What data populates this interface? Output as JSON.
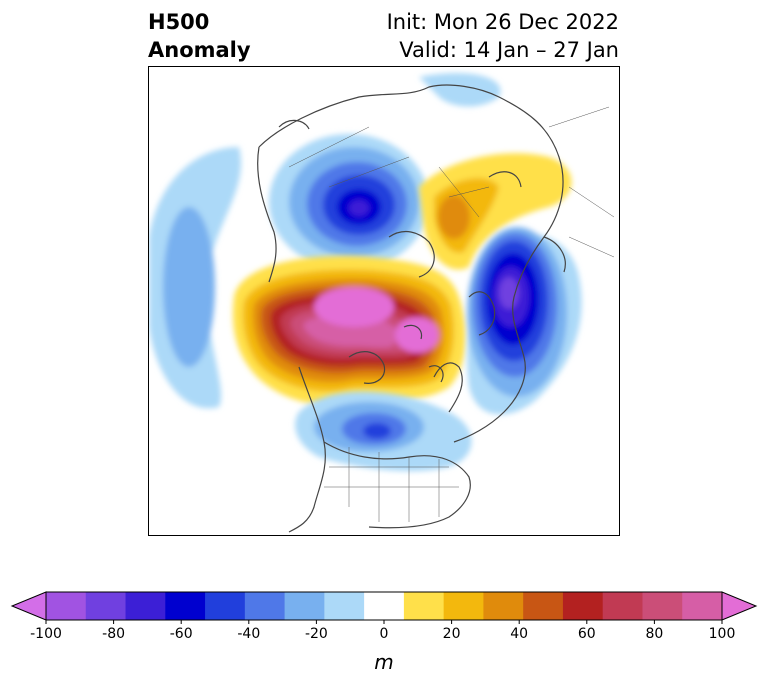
{
  "title": {
    "left_line1": "H500",
    "left_line2": "Anomaly",
    "right_line1": "Init: Mon 26 Dec 2022",
    "right_line2": "Valid: 14 Jan – 27 Jan"
  },
  "colorbar": {
    "unit": "m",
    "extend": "both",
    "tick_labels": [
      "-100",
      "-80",
      "-60",
      "-40",
      "-20",
      "0",
      "20",
      "40",
      "60",
      "80",
      "100"
    ],
    "levels": [
      -100,
      -90,
      -80,
      -70,
      -60,
      -50,
      -40,
      -30,
      -20,
      -10,
      10,
      20,
      30,
      40,
      50,
      60,
      70,
      80,
      90,
      100
    ],
    "colors": [
      "#d36ee8",
      "#a153e2",
      "#7040e0",
      "#3c1fd6",
      "#0000cf",
      "#213fdc",
      "#4f78e8",
      "#78b0ef",
      "#acd9f8",
      "#ffffff",
      "#ffe04a",
      "#f3b80d",
      "#e08b0c",
      "#c85614",
      "#b32120",
      "#c13a53",
      "#cb4e78",
      "#d65ea6",
      "#e36dd6"
    ]
  },
  "map": {
    "projection": "north-polar-stereographic",
    "field": "500 hPa geopotential height anomaly",
    "centers": [
      {
        "label": "positive-anomaly-arctic",
        "peak_m": 100
      },
      {
        "label": "negative-anomaly-siberia",
        "peak_m": -90
      },
      {
        "label": "negative-anomaly-north-pacific",
        "peak_m": -90
      },
      {
        "label": "positive-anomaly-europe",
        "peak_m": 50
      },
      {
        "label": "negative-anomaly-north-america",
        "peak_m": -60
      },
      {
        "label": "negative-anomaly-north-atlantic",
        "peak_m": -40
      }
    ]
  }
}
